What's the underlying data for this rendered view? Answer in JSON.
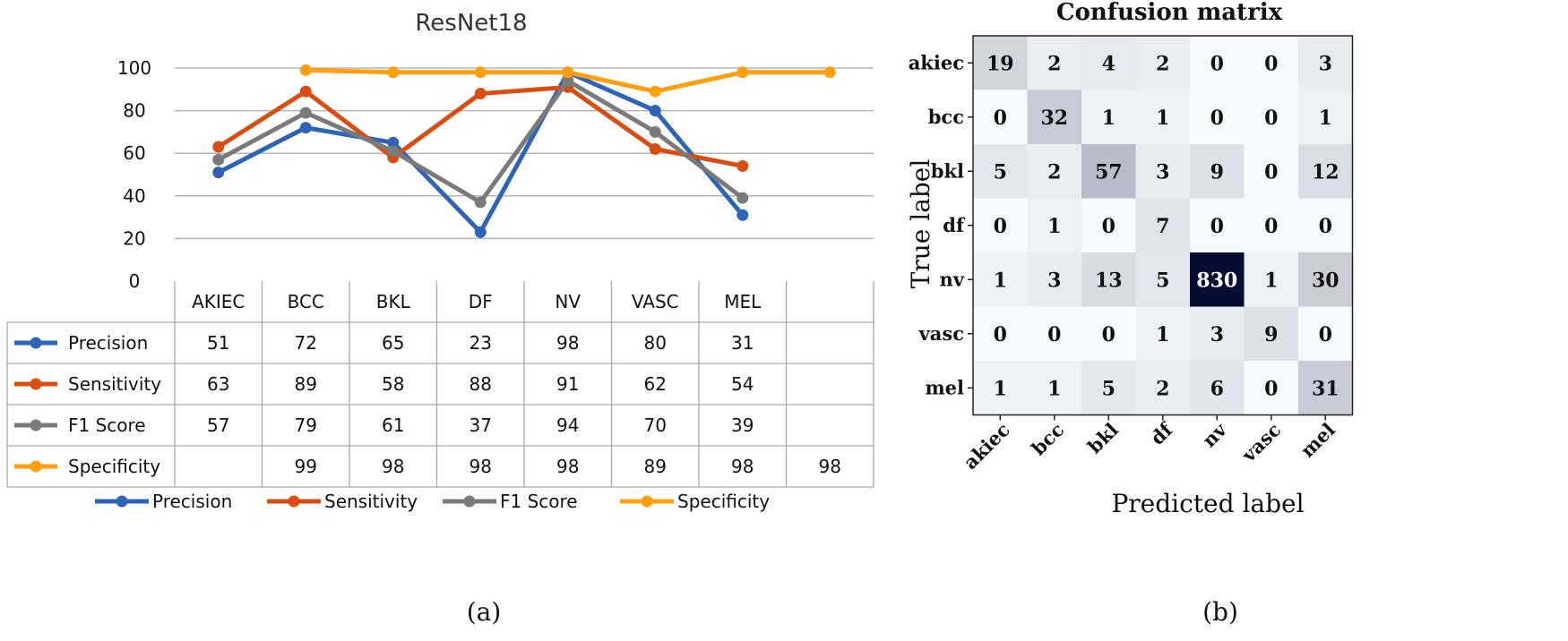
{
  "captions": [
    "(a)",
    "(b)"
  ],
  "chart_data": [
    {
      "type": "line",
      "title": "ResNet18",
      "categories": [
        "AKIEC",
        "BCC",
        "BKL",
        "DF",
        "NV",
        "VASC",
        "MEL",
        ""
      ],
      "ylim": [
        0,
        100
      ],
      "yticks": [
        0,
        20,
        40,
        60,
        80,
        100
      ],
      "grid": true,
      "legend_position": "bottom",
      "series": [
        {
          "name": "Precision",
          "color": "#2e64b8",
          "values": [
            51,
            72,
            65,
            23,
            98,
            80,
            31,
            null
          ]
        },
        {
          "name": "Sensitivity",
          "color": "#d94d12",
          "values": [
            63,
            89,
            58,
            88,
            91,
            62,
            54,
            null
          ]
        },
        {
          "name": "F1 Score",
          "color": "#7a7a7a",
          "values": [
            57,
            79,
            61,
            37,
            94,
            70,
            39,
            null
          ]
        },
        {
          "name": "Specificity",
          "color": "#ff9f0f",
          "values": [
            null,
            99,
            98,
            98,
            98,
            89,
            98,
            98
          ]
        }
      ]
    },
    {
      "type": "heatmap",
      "title": "Confusion matrix",
      "xlabel": "Predicted label",
      "ylabel": "True label",
      "labels": [
        "akiec",
        "bcc",
        "bkl",
        "df",
        "nv",
        "vasc",
        "mel"
      ],
      "matrix": [
        [
          19,
          2,
          4,
          2,
          0,
          0,
          3
        ],
        [
          0,
          32,
          1,
          1,
          0,
          0,
          1
        ],
        [
          5,
          2,
          57,
          3,
          9,
          0,
          12
        ],
        [
          0,
          1,
          0,
          7,
          0,
          0,
          0
        ],
        [
          1,
          3,
          13,
          5,
          830,
          1,
          30
        ],
        [
          0,
          0,
          0,
          1,
          3,
          9,
          0
        ],
        [
          1,
          1,
          5,
          2,
          6,
          0,
          31
        ]
      ]
    }
  ]
}
